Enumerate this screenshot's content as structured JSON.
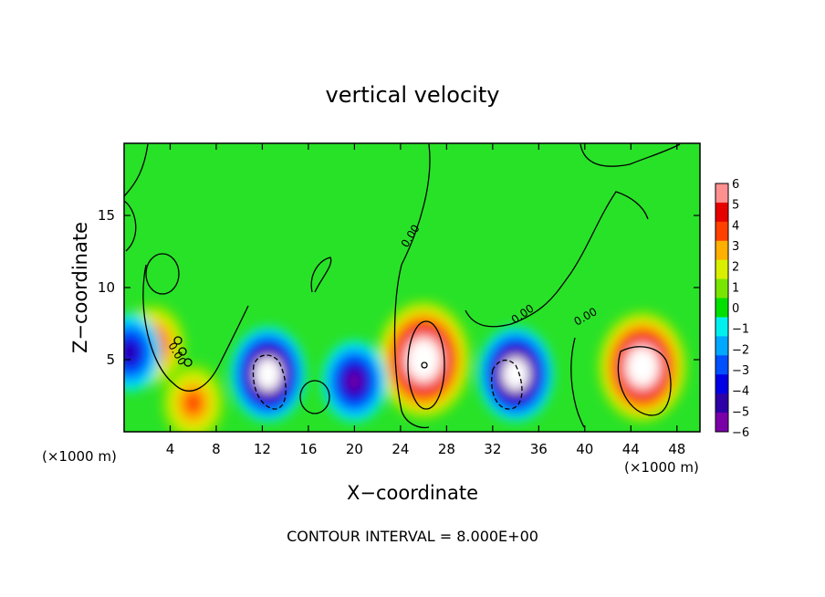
{
  "chart_data": {
    "type": "heatmap",
    "title": "vertical velocity",
    "xlabel": "X−coordinate",
    "ylabel": "Z−coordinate",
    "x_units": "(×1000 m)",
    "xlim": [
      0,
      50
    ],
    "ylim": [
      0,
      20
    ],
    "x_ticks": [
      4,
      8,
      12,
      16,
      20,
      24,
      28,
      32,
      36,
      40,
      44,
      48
    ],
    "y_ticks": [
      5,
      10,
      15
    ],
    "colorbar": {
      "min": -6,
      "max": 6,
      "ticks": [
        6,
        5,
        4,
        3,
        2,
        1,
        0,
        -1,
        -2,
        -3,
        -4,
        -5,
        -6
      ],
      "tick_labels": [
        "6",
        "5",
        "4",
        "3",
        "2",
        "1",
        "0",
        "−1",
        "−2",
        "−3",
        "−4",
        "−5",
        "−6"
      ],
      "colors": [
        "#7a00a8",
        "#2d00a8",
        "#0000e6",
        "#0050ff",
        "#00a8ff",
        "#00f0f0",
        "#00e000",
        "#78e600",
        "#d8f000",
        "#ffb000",
        "#ff4000",
        "#e60000",
        "#ff9090"
      ]
    },
    "contour_labels": [
      "0.00",
      "0.00",
      "0.00",
      "0.00"
    ],
    "contour_interval_text": "CONTOUR INTERVAL = 8.000E+00",
    "features": [
      {
        "kind": "updraft",
        "x": 26.0,
        "z": 5.0,
        "peak": 14
      },
      {
        "kind": "updraft",
        "x": 45.0,
        "z": 4.5,
        "peak": 12
      },
      {
        "kind": "updraft",
        "x": 2.5,
        "z": 6.0,
        "peak": 4
      },
      {
        "kind": "updraft",
        "x": 6.0,
        "z": 2.0,
        "peak": 3
      },
      {
        "kind": "downdraft",
        "x": 12.5,
        "z": 4.0,
        "peak": -9
      },
      {
        "kind": "downdraft",
        "x": 34.0,
        "z": 4.0,
        "peak": -9
      },
      {
        "kind": "downdraft",
        "x": 20.0,
        "z": 3.5,
        "peak": -5
      },
      {
        "kind": "downdraft",
        "x": 0.5,
        "z": 5.5,
        "peak": -4
      }
    ]
  }
}
